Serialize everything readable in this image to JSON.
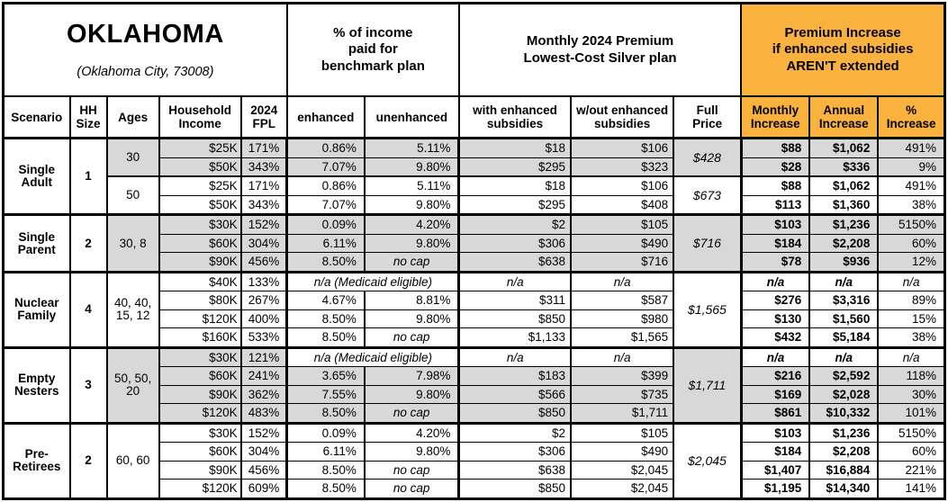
{
  "title": {
    "state": "OKLAHOMA",
    "subtitle": "(Oklahoma City, 73008)"
  },
  "colors": {
    "accent_orange": "#FAB23F",
    "band_gray": "#D8D8D8",
    "border_black": "#000000"
  },
  "groups": {
    "pct_income": "% of income\npaid for\nbenchmark plan",
    "premium": "Monthly 2024 Premium\nLowest-Cost Silver plan",
    "increase": "Premium Increase\nif enhanced subsidies\nAREN'T extended"
  },
  "header": {
    "columns": [
      "Scenario",
      "HH\nSize",
      "Ages",
      "Household\nIncome",
      "2024\nFPL",
      "enhanced",
      "unenhanced",
      "with enhanced\nsubsidies",
      "w/out enhanced\nsubsidies",
      "Full\nPrice",
      "Monthly\nIncrease",
      "Annual\nIncrease",
      "%\nIncrease"
    ]
  },
  "labels": {
    "no_cap": "no cap",
    "na": "n/a",
    "medicaid_na": "n/a (Medicaid eligible)"
  },
  "scenarios": [
    {
      "name": "Single Adult",
      "hh_size": "1",
      "age_groups": [
        {
          "ages": "30",
          "shaded": true,
          "full_price": "$428",
          "rows": [
            {
              "income": "$25K",
              "fpl": "171%",
              "enhanced": "0.86%",
              "unenhanced": "5.11%",
              "with_sub": "$18",
              "without_sub": "$106",
              "monthly": "$88",
              "annual": "$1,062",
              "pct": "491%"
            },
            {
              "income": "$50K",
              "fpl": "343%",
              "enhanced": "7.07%",
              "unenhanced": "9.80%",
              "with_sub": "$295",
              "without_sub": "$323",
              "monthly": "$28",
              "annual": "$336",
              "pct": "9%"
            }
          ]
        },
        {
          "ages": "50",
          "shaded": false,
          "full_price": "$673",
          "rows": [
            {
              "income": "$25K",
              "fpl": "171%",
              "enhanced": "0.86%",
              "unenhanced": "5.11%",
              "with_sub": "$18",
              "without_sub": "$106",
              "monthly": "$88",
              "annual": "$1,062",
              "pct": "491%"
            },
            {
              "income": "$50K",
              "fpl": "343%",
              "enhanced": "7.07%",
              "unenhanced": "9.80%",
              "with_sub": "$295",
              "without_sub": "$408",
              "monthly": "$113",
              "annual": "$1,360",
              "pct": "38%"
            }
          ]
        }
      ]
    },
    {
      "name": "Single Parent",
      "hh_size": "2",
      "age_groups": [
        {
          "ages": "30, 8",
          "shaded": true,
          "full_price": "$716",
          "rows": [
            {
              "income": "$30K",
              "fpl": "152%",
              "enhanced": "0.09%",
              "unenhanced": "4.20%",
              "with_sub": "$2",
              "without_sub": "$105",
              "monthly": "$103",
              "annual": "$1,236",
              "pct": "5150%"
            },
            {
              "income": "$60K",
              "fpl": "304%",
              "enhanced": "6.11%",
              "unenhanced": "9.80%",
              "with_sub": "$306",
              "without_sub": "$490",
              "monthly": "$184",
              "annual": "$2,208",
              "pct": "60%"
            },
            {
              "income": "$90K",
              "fpl": "456%",
              "enhanced": "8.50%",
              "unenhanced": "no cap",
              "with_sub": "$638",
              "without_sub": "$716",
              "monthly": "$78",
              "annual": "$936",
              "pct": "12%"
            }
          ]
        }
      ]
    },
    {
      "name": "Nuclear Family",
      "hh_size": "4",
      "age_groups": [
        {
          "ages": "40, 40, 15, 12",
          "shaded": false,
          "full_price": "$1,565",
          "rows": [
            {
              "income": "$40K",
              "fpl": "133%",
              "medicaid": true,
              "with_sub": "n/a",
              "without_sub": "n/a",
              "monthly": "n/a",
              "annual": "n/a",
              "pct": "n/a"
            },
            {
              "income": "$80K",
              "fpl": "267%",
              "enhanced": "4.67%",
              "unenhanced": "8.81%",
              "with_sub": "$311",
              "without_sub": "$587",
              "monthly": "$276",
              "annual": "$3,316",
              "pct": "89%"
            },
            {
              "income": "$120K",
              "fpl": "400%",
              "enhanced": "8.50%",
              "unenhanced": "9.80%",
              "with_sub": "$850",
              "without_sub": "$980",
              "monthly": "$130",
              "annual": "$1,560",
              "pct": "15%"
            },
            {
              "income": "$160K",
              "fpl": "533%",
              "enhanced": "8.50%",
              "unenhanced": "no cap",
              "with_sub": "$1,133",
              "without_sub": "$1,565",
              "monthly": "$432",
              "annual": "$5,184",
              "pct": "38%"
            }
          ]
        }
      ]
    },
    {
      "name": "Empty Nesters",
      "hh_size": "3",
      "age_groups": [
        {
          "ages": "50, 50, 20",
          "shaded": true,
          "full_price": "$1,711",
          "rows": [
            {
              "income": "$30K",
              "fpl": "121%",
              "medicaid": true,
              "with_sub": "n/a",
              "without_sub": "n/a",
              "monthly": "n/a",
              "annual": "n/a",
              "pct": "n/a"
            },
            {
              "income": "$60K",
              "fpl": "241%",
              "enhanced": "3.65%",
              "unenhanced": "7.98%",
              "with_sub": "$183",
              "without_sub": "$399",
              "monthly": "$216",
              "annual": "$2,592",
              "pct": "118%"
            },
            {
              "income": "$90K",
              "fpl": "362%",
              "enhanced": "7.55%",
              "unenhanced": "9.80%",
              "with_sub": "$566",
              "without_sub": "$735",
              "monthly": "$169",
              "annual": "$2,028",
              "pct": "30%"
            },
            {
              "income": "$120K",
              "fpl": "483%",
              "enhanced": "8.50%",
              "unenhanced": "no cap",
              "with_sub": "$850",
              "without_sub": "$1,711",
              "monthly": "$861",
              "annual": "$10,332",
              "pct": "101%"
            }
          ]
        }
      ]
    },
    {
      "name": "Pre-Retirees",
      "hh_size": "2",
      "age_groups": [
        {
          "ages": "60, 60",
          "shaded": false,
          "full_price": "$2,045",
          "rows": [
            {
              "income": "$30K",
              "fpl": "152%",
              "enhanced": "0.09%",
              "unenhanced": "4.20%",
              "with_sub": "$2",
              "without_sub": "$105",
              "monthly": "$103",
              "annual": "$1,236",
              "pct": "5150%"
            },
            {
              "income": "$60K",
              "fpl": "304%",
              "enhanced": "6.11%",
              "unenhanced": "9.80%",
              "with_sub": "$306",
              "without_sub": "$490",
              "monthly": "$184",
              "annual": "$2,208",
              "pct": "60%"
            },
            {
              "income": "$90K",
              "fpl": "456%",
              "enhanced": "8.50%",
              "unenhanced": "no cap",
              "with_sub": "$638",
              "without_sub": "$2,045",
              "monthly": "$1,407",
              "annual": "$16,884",
              "pct": "221%"
            },
            {
              "income": "$120K",
              "fpl": "609%",
              "enhanced": "8.50%",
              "unenhanced": "no cap",
              "with_sub": "$850",
              "without_sub": "$2,045",
              "monthly": "$1,195",
              "annual": "$14,340",
              "pct": "141%"
            }
          ]
        }
      ]
    }
  ]
}
